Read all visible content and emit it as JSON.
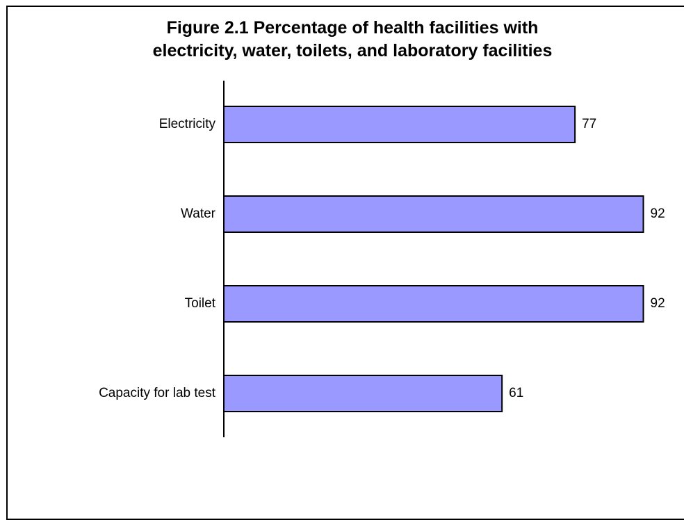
{
  "chart_data": {
    "type": "bar",
    "orientation": "horizontal",
    "title_lines": [
      "Figure 2.1  Percentage of health facilities with",
      "electricity, water, toilets, and laboratory facilities"
    ],
    "categories": [
      "Electricity",
      "Water",
      "Toilet",
      "Capacity for lab test"
    ],
    "values": [
      77,
      92,
      92,
      61
    ],
    "value_labels": [
      "77",
      "92",
      "92",
      "61"
    ],
    "xlim": [
      0,
      100
    ],
    "grid": false,
    "legend": "none",
    "bar_color": "#9999ff",
    "bar_edge_color": "#000000"
  }
}
